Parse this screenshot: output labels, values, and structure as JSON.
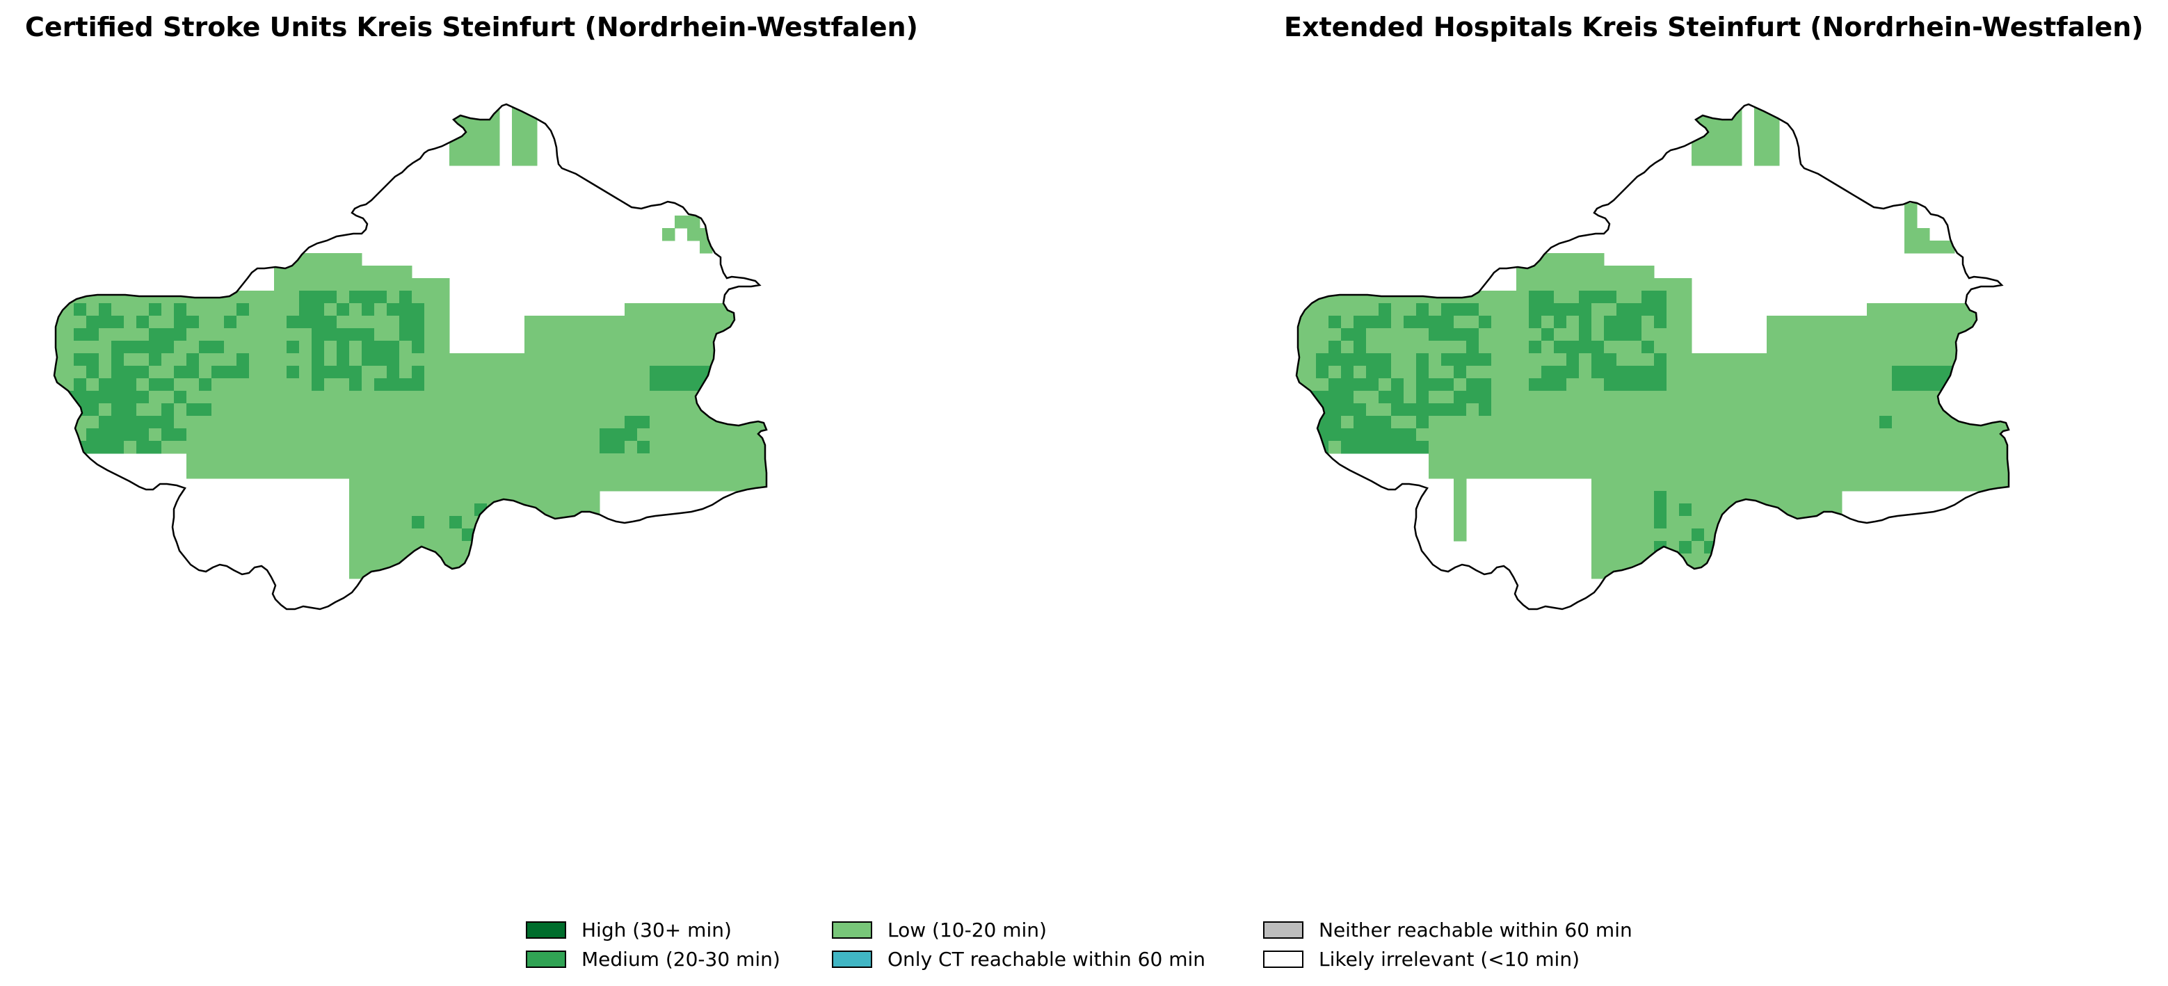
{
  "panels": [
    {
      "title": "Certified Stroke Units Kreis Steinfurt (Nordrhein-Westfalen)"
    },
    {
      "title": "Extended Hospitals Kreis Steinfurt (Nordrhein-Westfalen)"
    }
  ],
  "legend": {
    "items": [
      {
        "label": "High (30+ min)",
        "color": "#006d2c"
      },
      {
        "label": "Medium (20-30 min)",
        "color": "#31a354"
      },
      {
        "label": "Low (10-20 min)",
        "color": "#78c679"
      },
      {
        "label": "Only CT reachable within 60 min",
        "color": "#41b6c4"
      },
      {
        "label": "Neither reachable within 60 min",
        "color": "#bdbdbd"
      },
      {
        "label": "Likely irrelevant (<10 min)",
        "color": "#ffffff"
      }
    ]
  },
  "map_style": {
    "outline_color": "#000000",
    "background_color": "#ffffff"
  }
}
